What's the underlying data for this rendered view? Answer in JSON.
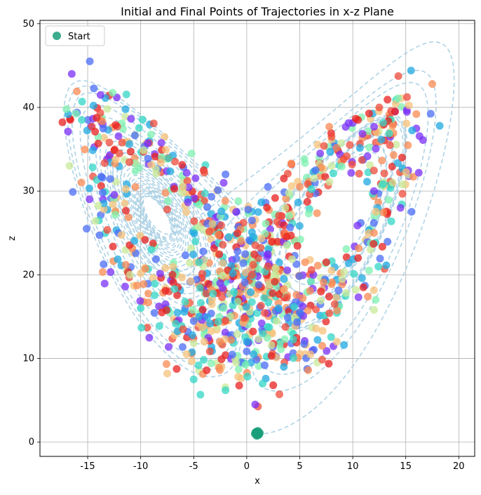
{
  "chart_data": {
    "type": "scatter",
    "title": "Initial and Final Points of Trajectories in x-z Plane",
    "xlabel": "x",
    "ylabel": "z",
    "xlim": [
      -19.5,
      21.5
    ],
    "ylim": [
      -1.7,
      50.4
    ],
    "xticks": [
      -15,
      -10,
      -5,
      0,
      5,
      10,
      15,
      20
    ],
    "yticks": [
      0,
      10,
      20,
      30,
      40,
      50
    ],
    "grid": true,
    "legend": {
      "position": "top-left",
      "entries": [
        {
          "label": "Start",
          "color": "#1a9e7a"
        }
      ]
    },
    "start_points": [
      [
        0.9,
        1.2
      ],
      [
        1.1,
        0.9
      ],
      [
        1.0,
        1.1
      ],
      [
        0.8,
        1.0
      ],
      [
        1.2,
        1.1
      ],
      [
        0.95,
        0.8
      ],
      [
        1.05,
        1.3
      ],
      [
        0.85,
        1.15
      ],
      [
        1.15,
        0.95
      ]
    ],
    "final_points_color_scale": "rainbow",
    "final_points_note_examples": [
      [
        -16.5,
        44.0
      ],
      [
        -14.8,
        45.5
      ],
      [
        -17.0,
        39.8
      ],
      [
        -16.4,
        29.9
      ],
      [
        -15.1,
        25.5
      ],
      [
        -14.3,
        37.1
      ],
      [
        -12.0,
        34.5
      ],
      [
        -10.5,
        30.5
      ],
      [
        -8.1,
        33.4
      ],
      [
        -7.5,
        27.8
      ],
      [
        -6.0,
        30.5
      ],
      [
        -4.0,
        32.2
      ],
      [
        -2.0,
        32.0
      ],
      [
        -1.0,
        27.5
      ],
      [
        0.5,
        26.5
      ],
      [
        2.0,
        30.5
      ],
      [
        3.5,
        31.5
      ],
      [
        5.0,
        30.5
      ],
      [
        6.5,
        32.5
      ],
      [
        8.0,
        36.5
      ],
      [
        10.5,
        38.5
      ],
      [
        12.5,
        40.0
      ],
      [
        14.0,
        39.5
      ],
      [
        15.5,
        44.4
      ],
      [
        17.5,
        42.8
      ],
      [
        18.2,
        37.8
      ],
      [
        16.0,
        39.2
      ],
      [
        13.5,
        35.5
      ],
      [
        12.0,
        30.0
      ],
      [
        14.5,
        28.0
      ],
      [
        12.0,
        25.0
      ],
      [
        10.5,
        22.0
      ],
      [
        8.0,
        20.5
      ],
      [
        7.0,
        18.0
      ],
      [
        5.0,
        15.5
      ],
      [
        3.0,
        16.0
      ],
      [
        1.5,
        13.0
      ],
      [
        0.0,
        12.0
      ],
      [
        -2.0,
        14.5
      ],
      [
        -4.0,
        12.0
      ],
      [
        -6.0,
        13.5
      ],
      [
        -8.0,
        15.5
      ],
      [
        -10.0,
        16.0
      ],
      [
        -11.0,
        20.0
      ],
      [
        -9.0,
        23.0
      ],
      [
        -7.0,
        20.0
      ],
      [
        -4.5,
        21.5
      ],
      [
        -2.5,
        19.0
      ],
      [
        0.5,
        20.0
      ],
      [
        2.0,
        21.0
      ],
      [
        3.5,
        19.5
      ],
      [
        5.5,
        21.5
      ],
      [
        7.5,
        21.5
      ],
      [
        9.0,
        19.5
      ],
      [
        11.0,
        18.5
      ],
      [
        12.0,
        15.8
      ],
      [
        -7.5,
        8.2
      ],
      [
        -5.0,
        7.5
      ],
      [
        -2.0,
        6.2
      ],
      [
        1.5,
        7.0
      ],
      [
        2.5,
        6.8
      ],
      [
        0.8,
        4.5
      ],
      [
        -1.0,
        9.5
      ],
      [
        3.5,
        9.0
      ],
      [
        6.0,
        10.5
      ],
      [
        8.5,
        12.0
      ]
    ]
  }
}
